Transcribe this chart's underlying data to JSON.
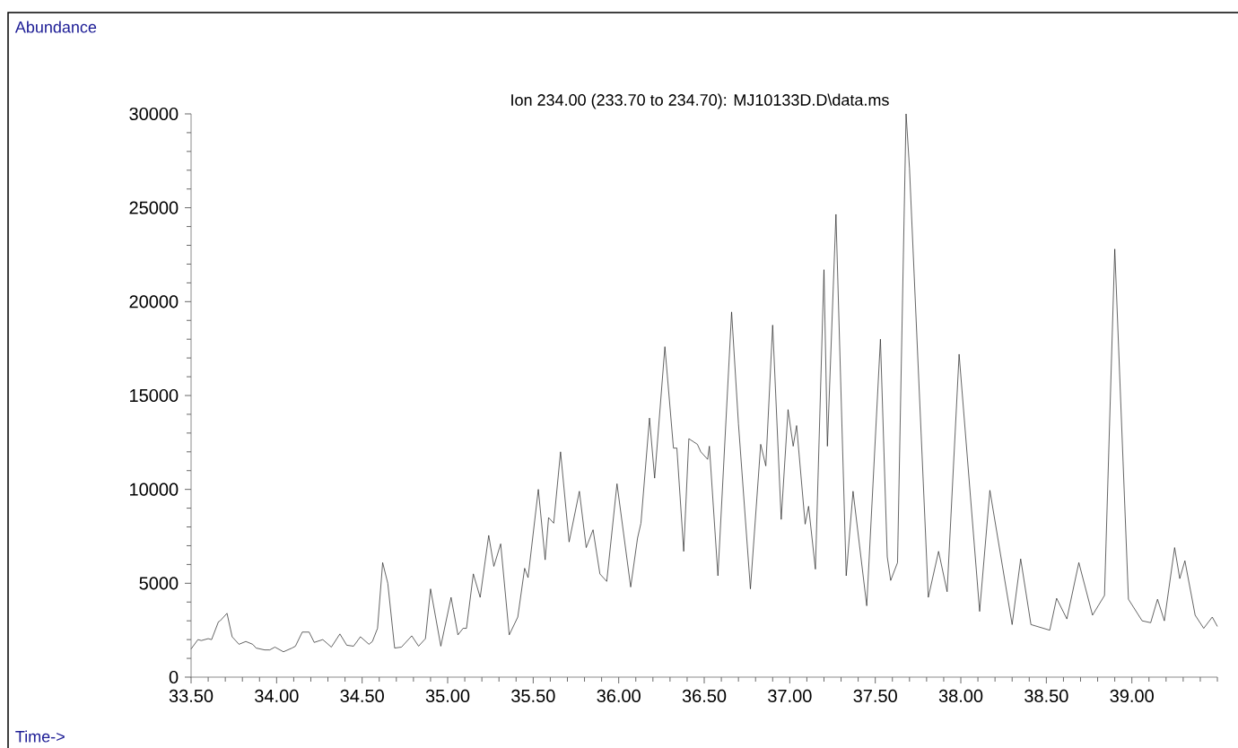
{
  "chart_data": {
    "type": "line",
    "title": "Ion 234.00 (233.70 to 234.70): MJ10133D.D\\data.ms",
    "annotations": [
      "Abundance",
      "Time->"
    ],
    "xlim": [
      33.5,
      39.5
    ],
    "ylim": [
      0,
      30000
    ],
    "xticks": [
      {
        "value": 33.5,
        "label": "33.50"
      },
      {
        "value": 33.6,
        "label": null
      },
      {
        "value": 33.7,
        "label": null
      },
      {
        "value": 33.8,
        "label": null
      },
      {
        "value": 33.9,
        "label": null
      },
      {
        "value": 34.0,
        "label": "34.00"
      },
      {
        "value": 34.1,
        "label": null
      },
      {
        "value": 34.2,
        "label": null
      },
      {
        "value": 34.3,
        "label": null
      },
      {
        "value": 34.4,
        "label": null
      },
      {
        "value": 34.5,
        "label": "34.50"
      },
      {
        "value": 34.6,
        "label": null
      },
      {
        "value": 34.7,
        "label": null
      },
      {
        "value": 34.8,
        "label": null
      },
      {
        "value": 34.9,
        "label": null
      },
      {
        "value": 35.0,
        "label": "35.00"
      },
      {
        "value": 35.1,
        "label": null
      },
      {
        "value": 35.2,
        "label": null
      },
      {
        "value": 35.3,
        "label": null
      },
      {
        "value": 35.4,
        "label": null
      },
      {
        "value": 35.5,
        "label": "35.50"
      },
      {
        "value": 35.6,
        "label": null
      },
      {
        "value": 35.7,
        "label": null
      },
      {
        "value": 35.8,
        "label": null
      },
      {
        "value": 35.9,
        "label": null
      },
      {
        "value": 36.0,
        "label": "36.00"
      },
      {
        "value": 36.1,
        "label": null
      },
      {
        "value": 36.2,
        "label": null
      },
      {
        "value": 36.3,
        "label": null
      },
      {
        "value": 36.4,
        "label": null
      },
      {
        "value": 36.5,
        "label": "36.50"
      },
      {
        "value": 36.6,
        "label": null
      },
      {
        "value": 36.7,
        "label": null
      },
      {
        "value": 36.8,
        "label": null
      },
      {
        "value": 36.9,
        "label": null
      },
      {
        "value": 37.0,
        "label": "37.00"
      },
      {
        "value": 37.1,
        "label": null
      },
      {
        "value": 37.2,
        "label": null
      },
      {
        "value": 37.3,
        "label": null
      },
      {
        "value": 37.4,
        "label": null
      },
      {
        "value": 37.5,
        "label": "37.50"
      },
      {
        "value": 37.6,
        "label": null
      },
      {
        "value": 37.7,
        "label": null
      },
      {
        "value": 37.8,
        "label": null
      },
      {
        "value": 37.9,
        "label": null
      },
      {
        "value": 38.0,
        "label": "38.00"
      },
      {
        "value": 38.1,
        "label": null
      },
      {
        "value": 38.2,
        "label": null
      },
      {
        "value": 38.3,
        "label": null
      },
      {
        "value": 38.4,
        "label": null
      },
      {
        "value": 38.5,
        "label": "38.50"
      },
      {
        "value": 38.6,
        "label": null
      },
      {
        "value": 38.7,
        "label": null
      },
      {
        "value": 38.8,
        "label": null
      },
      {
        "value": 38.9,
        "label": null
      },
      {
        "value": 39.0,
        "label": "39.00"
      },
      {
        "value": 39.1,
        "label": null
      },
      {
        "value": 39.2,
        "label": null
      },
      {
        "value": 39.3,
        "label": null
      },
      {
        "value": 39.4,
        "label": null
      },
      {
        "value": 39.5,
        "label": null
      }
    ],
    "yticks": [
      0,
      {
        "value": 1000,
        "label": null
      },
      {
        "value": 2000,
        "label": null
      },
      {
        "value": 3000,
        "label": null
      },
      {
        "value": 4000,
        "label": null
      },
      5000,
      {
        "value": 6000,
        "label": null
      },
      {
        "value": 7000,
        "label": null
      },
      {
        "value": 8000,
        "label": null
      },
      {
        "value": 9000,
        "label": null
      },
      10000,
      {
        "value": 11000,
        "label": null
      },
      {
        "value": 12000,
        "label": null
      },
      {
        "value": 13000,
        "label": null
      },
      {
        "value": 14000,
        "label": null
      },
      15000,
      {
        "value": 16000,
        "label": null
      },
      {
        "value": 17000,
        "label": null
      },
      {
        "value": 18000,
        "label": null
      },
      {
        "value": 19000,
        "label": null
      },
      20000,
      {
        "value": 21000,
        "label": null
      },
      {
        "value": 22000,
        "label": null
      },
      {
        "value": 23000,
        "label": null
      },
      {
        "value": 24000,
        "label": null
      },
      25000,
      {
        "value": 26000,
        "label": null
      },
      {
        "value": 27000,
        "label": null
      },
      {
        "value": 28000,
        "label": null
      },
      {
        "value": 29000,
        "label": null
      },
      30000
    ],
    "marker": "none",
    "line_style": "solid",
    "series": [
      {
        "color": "#222222",
        "x": [
          33.5,
          33.54,
          33.56,
          33.6,
          33.62,
          33.66,
          33.67,
          33.71,
          33.74,
          33.78,
          33.82,
          33.86,
          33.88,
          33.93,
          33.96,
          33.99,
          34.04,
          34.09,
          34.11,
          34.15,
          34.19,
          34.22,
          34.27,
          34.32,
          34.37,
          34.41,
          34.45,
          34.49,
          34.54,
          34.56,
          34.59,
          34.62,
          34.65,
          34.69,
          34.73,
          34.79,
          34.83,
          34.87,
          34.9,
          34.96,
          35.02,
          35.06,
          35.09,
          35.11,
          35.15,
          35.19,
          35.24,
          35.27,
          35.31,
          35.36,
          35.41,
          35.45,
          35.47,
          35.53,
          35.57,
          35.59,
          35.62,
          35.66,
          35.71,
          35.77,
          35.81,
          35.85,
          35.89,
          35.93,
          35.99,
          36.07,
          36.11,
          36.13,
          36.18,
          36.21,
          36.27,
          36.32,
          36.34,
          36.38,
          36.41,
          36.46,
          36.48,
          36.52,
          36.53,
          36.58,
          36.66,
          36.7,
          36.77,
          36.83,
          36.86,
          36.9,
          36.95,
          36.99,
          37.02,
          37.04,
          37.09,
          37.11,
          37.15,
          37.2,
          37.22,
          37.27,
          37.33,
          37.37,
          37.45,
          37.53,
          37.57,
          37.59,
          37.63,
          37.68,
          37.7,
          37.81,
          37.87,
          37.92,
          37.99,
          38.11,
          38.17,
          38.3,
          38.35,
          38.41,
          38.52,
          38.56,
          38.62,
          38.69,
          38.77,
          38.84,
          38.9,
          38.98,
          39.06,
          39.11,
          39.15,
          39.19,
          39.25,
          39.28,
          39.31,
          39.37,
          39.42,
          39.47,
          39.5
        ],
        "values": [
          1500,
          2000,
          1950,
          2050,
          2000,
          2950,
          3000,
          3400,
          2150,
          1750,
          1900,
          1750,
          1550,
          1450,
          1450,
          1600,
          1350,
          1550,
          1650,
          2400,
          2400,
          1850,
          2000,
          1600,
          2300,
          1700,
          1650,
          2150,
          1750,
          1900,
          2600,
          6100,
          5000,
          1550,
          1600,
          2200,
          1650,
          2050,
          4700,
          1650,
          4250,
          2250,
          2600,
          2600,
          5500,
          4250,
          7550,
          5900,
          7100,
          2250,
          3200,
          5800,
          5300,
          10000,
          6250,
          8500,
          8200,
          12000,
          7200,
          9900,
          6900,
          7850,
          5500,
          5100,
          10300,
          4800,
          7400,
          8200,
          13800,
          10600,
          17600,
          12200,
          12200,
          6700,
          12700,
          12400,
          12000,
          11600,
          12300,
          5400,
          19450,
          13500,
          4700,
          12400,
          11250,
          18750,
          8400,
          14250,
          12300,
          13400,
          8150,
          9100,
          5750,
          21700,
          12300,
          24650,
          5400,
          9900,
          3800,
          18000,
          6400,
          5150,
          6100,
          30000,
          27100,
          4250,
          6700,
          4550,
          17200,
          3500,
          9950,
          2800,
          6300,
          2800,
          2500,
          4200,
          3100,
          6100,
          3300,
          4350,
          22800,
          4150,
          3000,
          2900,
          4150,
          3000,
          6900,
          5250,
          6200,
          3300,
          2600,
          3200,
          2700
        ]
      }
    ]
  }
}
